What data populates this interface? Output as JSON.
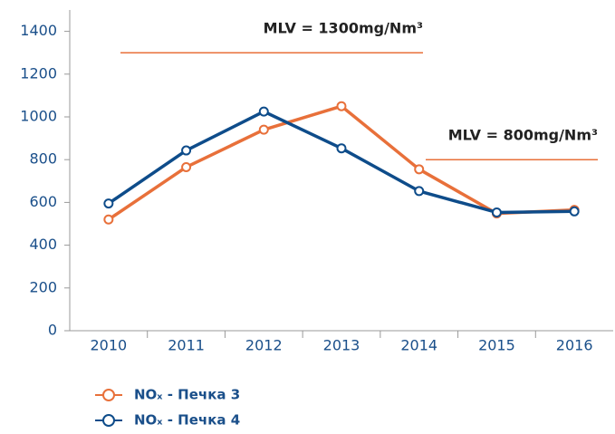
{
  "chart_data": {
    "type": "line",
    "categories": [
      "2010",
      "2011",
      "2012",
      "2013",
      "2014",
      "2015",
      "2016"
    ],
    "series": [
      {
        "name": "NOₓ - Печка 3",
        "color": "#e8703a",
        "values": [
          520,
          765,
          940,
          1050,
          755,
          548,
          565
        ]
      },
      {
        "name": "NOₓ - Печка 4",
        "color": "#0e4c8a",
        "values": [
          595,
          843,
          1025,
          853,
          653,
          553,
          558
        ]
      }
    ],
    "ylim": [
      0,
      1500
    ],
    "yticks": [
      0,
      200,
      400,
      600,
      800,
      1000,
      1200,
      1400
    ],
    "annotations": [
      {
        "text": "MLV = 1300mg/Nm³",
        "value": 1300,
        "color": "#e8703a"
      },
      {
        "text": "MLV = 800mg/Nm³",
        "value": 800,
        "color": "#e8703a"
      }
    ]
  }
}
